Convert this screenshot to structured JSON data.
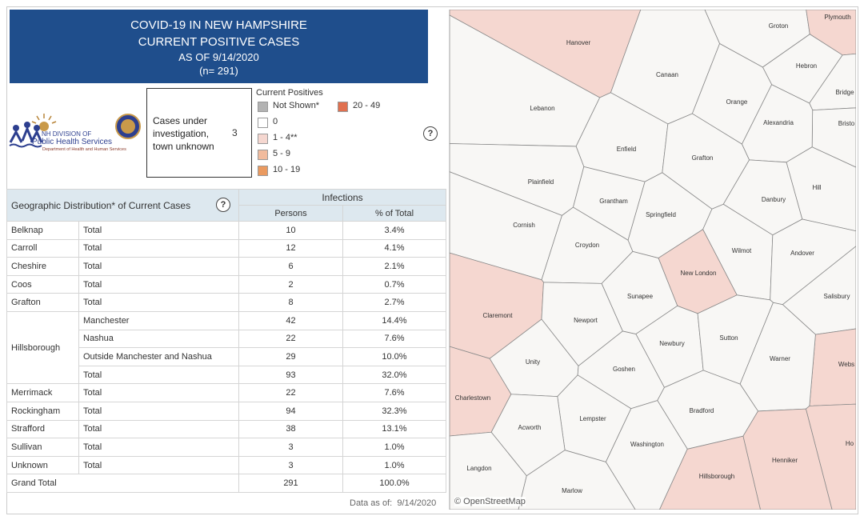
{
  "header": {
    "title": "COVID-19 IN NEW HAMPSHIRE",
    "subtitle": "CURRENT POSITIVE CASES",
    "as_of": "AS OF 9/14/2020",
    "n": "(n= 291)"
  },
  "logo": {
    "line1": "NH DIVISION OF",
    "line2": "Public Health Services",
    "line3": "Department of Health and Human Services"
  },
  "investigation": {
    "label": "Cases under investigation, town unknown",
    "value": 3
  },
  "legend": {
    "title": "Current Positives",
    "help": "?",
    "items": [
      {
        "label": "Not Shown*",
        "color": "#b3b3b3"
      },
      {
        "label": "0",
        "color": "#ffffff"
      },
      {
        "label": "1 - 4**",
        "color": "#f5d7d0"
      },
      {
        "label": "5 - 9",
        "color": "#f1bb9d"
      },
      {
        "label": "10 - 19",
        "color": "#ea9a60"
      },
      {
        "label": "20 - 49",
        "color": "#e0704f"
      }
    ]
  },
  "table": {
    "title": "Geographic Distribution* of Current Cases",
    "help": "?",
    "group_header": "Infections",
    "columns": [
      "Persons",
      "% of Total"
    ],
    "groups": [
      {
        "county": "Belknap",
        "rows": [
          {
            "label": "Total",
            "persons": 10,
            "pct": "3.4%"
          }
        ]
      },
      {
        "county": "Carroll",
        "rows": [
          {
            "label": "Total",
            "persons": 12,
            "pct": "4.1%"
          }
        ]
      },
      {
        "county": "Cheshire",
        "rows": [
          {
            "label": "Total",
            "persons": 6,
            "pct": "2.1%"
          }
        ]
      },
      {
        "county": "Coos",
        "rows": [
          {
            "label": "Total",
            "persons": 2,
            "pct": "0.7%"
          }
        ]
      },
      {
        "county": "Grafton",
        "rows": [
          {
            "label": "Total",
            "persons": 8,
            "pct": "2.7%"
          }
        ]
      },
      {
        "county": "Hillsborough",
        "rows": [
          {
            "label": "Manchester",
            "persons": 42,
            "pct": "14.4%"
          },
          {
            "label": "Nashua",
            "persons": 22,
            "pct": "7.6%"
          },
          {
            "label": "Outside Manchester and Nashua",
            "persons": 29,
            "pct": "10.0%"
          },
          {
            "label": "Total",
            "persons": 93,
            "pct": "32.0%"
          }
        ]
      },
      {
        "county": "Merrimack",
        "rows": [
          {
            "label": "Total",
            "persons": 22,
            "pct": "7.6%"
          }
        ]
      },
      {
        "county": "Rockingham",
        "rows": [
          {
            "label": "Total",
            "persons": 94,
            "pct": "32.3%"
          }
        ]
      },
      {
        "county": "Strafford",
        "rows": [
          {
            "label": "Total",
            "persons": 38,
            "pct": "13.1%"
          }
        ]
      },
      {
        "county": "Sullivan",
        "rows": [
          {
            "label": "Total",
            "persons": 3,
            "pct": "1.0%"
          }
        ]
      },
      {
        "county": "Unknown",
        "rows": [
          {
            "label": "Total",
            "persons": 3,
            "pct": "1.0%"
          }
        ]
      }
    ],
    "grand_total": {
      "label": "Grand Total",
      "persons": 291,
      "pct": "100.0%"
    }
  },
  "footer": {
    "label": "Data as of:",
    "date": "9/14/2020"
  },
  "map": {
    "attribution": "© OpenStreetMap",
    "towns": [
      {
        "name": "Groton",
        "color": "#f8f7f5"
      },
      {
        "name": "Plymouth",
        "color": "#f5d7d0"
      },
      {
        "name": "Hanover",
        "color": "#f5d7d0"
      },
      {
        "name": "Hebron",
        "color": "#f8f7f5"
      },
      {
        "name": "Canaan",
        "color": "#f8f7f5"
      },
      {
        "name": "Bridge",
        "color": "#f8f7f5"
      },
      {
        "name": "Lebanon",
        "color": "#f8f7f5"
      },
      {
        "name": "Orange",
        "color": "#f8f7f5"
      },
      {
        "name": "Bristo",
        "color": "#f8f7f5"
      },
      {
        "name": "Alexandria",
        "color": "#f8f7f5"
      },
      {
        "name": "Enfield",
        "color": "#f8f7f5"
      },
      {
        "name": "Grafton",
        "color": "#f8f7f5"
      },
      {
        "name": "Hill",
        "color": "#f8f7f5"
      },
      {
        "name": "Plainfield",
        "color": "#f8f7f5"
      },
      {
        "name": "Grantham",
        "color": "#f8f7f5"
      },
      {
        "name": "Danbury",
        "color": "#f8f7f5"
      },
      {
        "name": "Springfield",
        "color": "#f8f7f5"
      },
      {
        "name": "Cornish",
        "color": "#f8f7f5"
      },
      {
        "name": "Croydon",
        "color": "#f8f7f5"
      },
      {
        "name": "Wilmot",
        "color": "#f8f7f5"
      },
      {
        "name": "Andover",
        "color": "#f8f7f5"
      },
      {
        "name": "New London",
        "color": "#f5d7d0"
      },
      {
        "name": "Salisbury",
        "color": "#f8f7f5"
      },
      {
        "name": "Sunapee",
        "color": "#f8f7f5"
      },
      {
        "name": "Claremont",
        "color": "#f5d7d0"
      },
      {
        "name": "Newport",
        "color": "#f8f7f5"
      },
      {
        "name": "Newbury",
        "color": "#f8f7f5"
      },
      {
        "name": "Sutton",
        "color": "#f8f7f5"
      },
      {
        "name": "Webs",
        "color": "#f5d7d0"
      },
      {
        "name": "Unity",
        "color": "#f8f7f5"
      },
      {
        "name": "Warner",
        "color": "#f8f7f5"
      },
      {
        "name": "Goshen",
        "color": "#f8f7f5"
      },
      {
        "name": "Charlestown",
        "color": "#f5d7d0"
      },
      {
        "name": "Lempster",
        "color": "#f8f7f5"
      },
      {
        "name": "Bradford",
        "color": "#f8f7f5"
      },
      {
        "name": "Acworth",
        "color": "#f8f7f5"
      },
      {
        "name": "Washington",
        "color": "#f8f7f5"
      },
      {
        "name": "Ho",
        "color": "#f5d7d0"
      },
      {
        "name": "Henniker",
        "color": "#f5d7d0"
      },
      {
        "name": "Hillsborough",
        "color": "#f5d7d0"
      },
      {
        "name": "Langdon",
        "color": "#f8f7f5"
      },
      {
        "name": "Marlow",
        "color": "#f8f7f5"
      }
    ]
  }
}
